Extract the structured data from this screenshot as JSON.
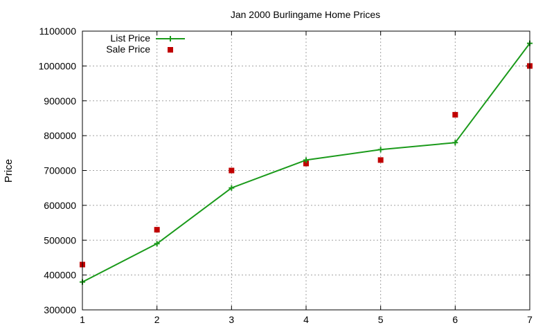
{
  "chart_data": {
    "type": "line",
    "title": "Jan 2000 Burlingame Home Prices",
    "xlabel": "",
    "ylabel": "Price",
    "x": [
      1,
      2,
      3,
      4,
      5,
      6,
      7
    ],
    "xlim": [
      1,
      7
    ],
    "ylim": [
      300000,
      1100000
    ],
    "xticks": [
      1,
      2,
      3,
      4,
      5,
      6,
      7
    ],
    "yticks": [
      300000,
      400000,
      500000,
      600000,
      700000,
      800000,
      900000,
      1000000,
      1100000
    ],
    "grid": true,
    "legend_position": "top-left",
    "series": [
      {
        "name": "List Price",
        "style": "line+cross",
        "color": "#1a9a1a",
        "values": [
          380000,
          490000,
          650000,
          730000,
          760000,
          780000,
          1065000
        ]
      },
      {
        "name": "Sale Price",
        "style": "square",
        "color": "#c00000",
        "values": [
          430000,
          530000,
          700000,
          720000,
          730000,
          860000,
          1000000
        ]
      }
    ]
  }
}
